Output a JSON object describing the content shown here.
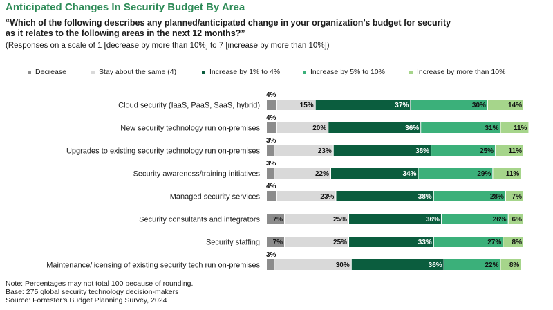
{
  "title": "Anticipated Changes In Security Budget By Area",
  "question": "“Which of the following describes any planned/anticipated change in your organization’s budget for security as it relates to the following areas in the next 12 months?”",
  "scale_note": "(Responses on a scale of 1 [decrease by more than 10%] to 7 [increase by more than 10%])",
  "footnotes": {
    "note": "Note: Percentages may not total 100 because of rounding.",
    "base": "Base: 275 global security technology decision-makers",
    "source": "Source: Forrester’s Budget Planning Survey, 2024"
  },
  "chart_data": {
    "type": "bar",
    "orientation": "horizontal",
    "stacked": true,
    "value_unit": "%",
    "xlim": [
      0,
      100
    ],
    "legend_position": "top",
    "categories": [
      "Cloud security (IaaS, PaaS, SaaS, hybrid)",
      "New security technology run on-premises",
      "Upgrades to existing security technology run on-premises",
      "Security awareness/training initiatives",
      "Managed security services",
      "Security consultants and integrators",
      "Security staffing",
      "Maintenance/licensing of existing security tech run on-premises"
    ],
    "series": [
      {
        "name": "Decrease",
        "color": "#8c8c8c",
        "values": [
          4,
          4,
          3,
          3,
          4,
          7,
          7,
          3
        ]
      },
      {
        "name": "Stay about the same (4)",
        "color": "#d9d9d9",
        "values": [
          15,
          20,
          23,
          22,
          23,
          25,
          25,
          30
        ]
      },
      {
        "name": "Increase by 1% to 4%",
        "color": "#0b5d3e",
        "values": [
          37,
          36,
          38,
          34,
          38,
          36,
          33,
          36
        ]
      },
      {
        "name": "Increase by 5% to 10%",
        "color": "#3bb07a",
        "values": [
          30,
          31,
          25,
          29,
          28,
          26,
          27,
          22
        ]
      },
      {
        "name": "Increase by more than 10%",
        "color": "#a6d58b",
        "values": [
          14,
          11,
          11,
          11,
          7,
          6,
          8,
          8
        ]
      }
    ]
  }
}
